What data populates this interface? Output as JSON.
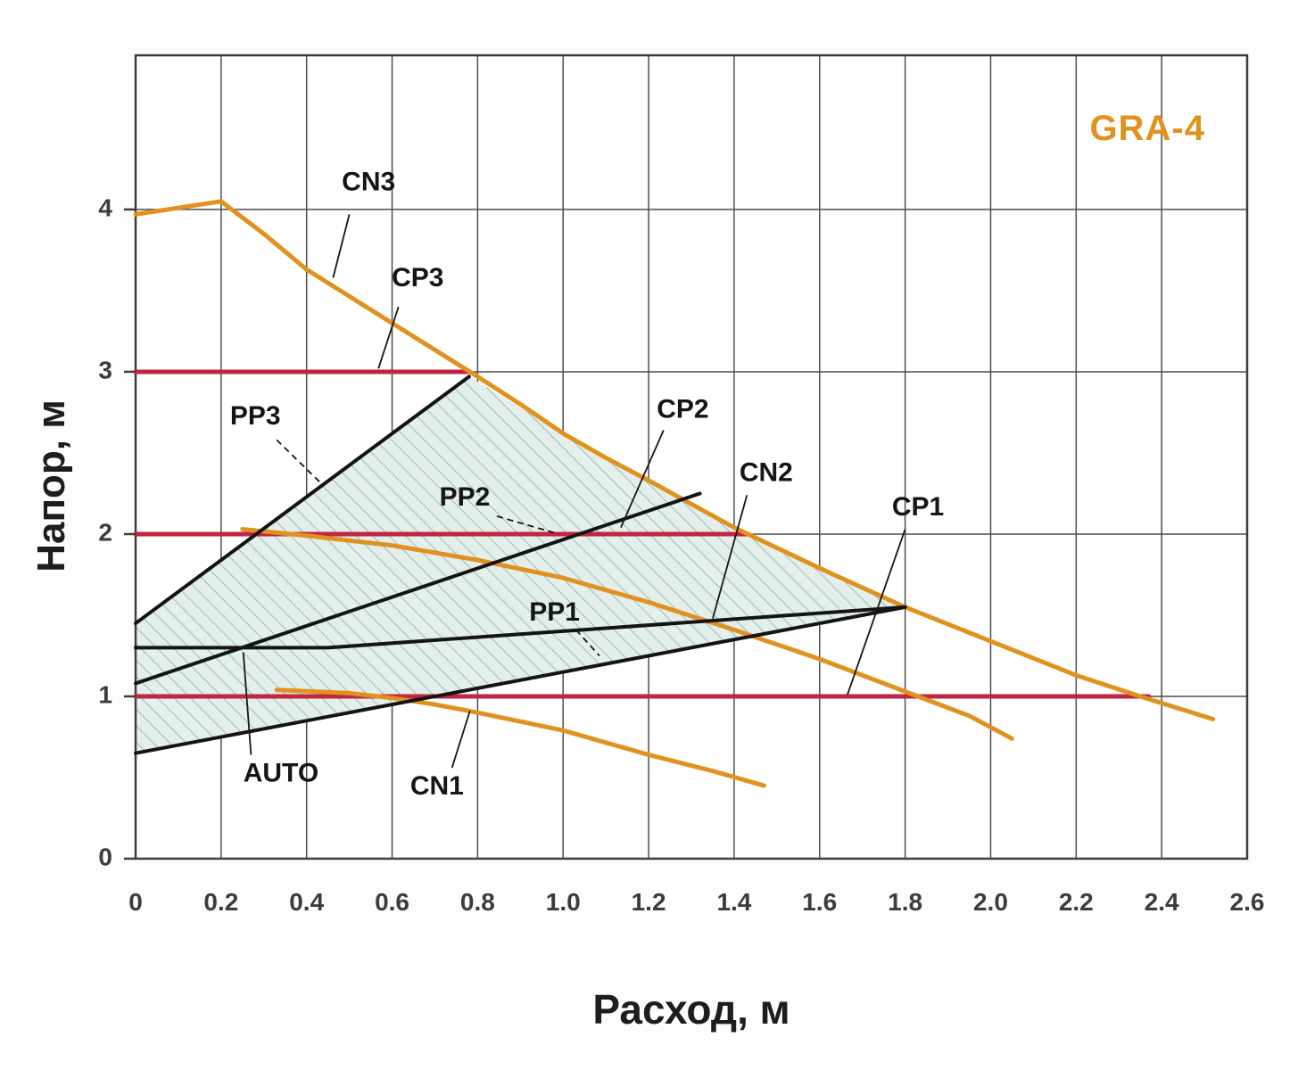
{
  "chart_data": {
    "type": "line",
    "title": "GRA-4",
    "title_color": "#e0921f",
    "xlabel": "Расход, м",
    "ylabel": "Напор, м",
    "xlim": [
      0,
      2.6
    ],
    "ylim": [
      0,
      4.95
    ],
    "x_ticks": [
      0,
      0.2,
      0.4,
      0.6,
      0.8,
      1.0,
      1.2,
      1.4,
      1.6,
      1.8,
      2.0,
      2.2,
      2.4,
      2.6
    ],
    "x_tick_labels": [
      "0",
      "0.2",
      "0.4",
      "0.6",
      "0.8",
      "1.0",
      "1.2",
      "1.4",
      "1.6",
      "1.8",
      "2.0",
      "2.2",
      "2.4",
      "2.6"
    ],
    "y_ticks": [
      0,
      1,
      2,
      3,
      4
    ],
    "y_tick_labels": [
      "0",
      "1",
      "2",
      "3",
      "4"
    ],
    "grid": {
      "y_lines": [
        1,
        2,
        3,
        4
      ],
      "color": "#4d4d4d",
      "border_color": "#3d3d3d"
    },
    "envelope": {
      "comment": "hatched AUTO operating range",
      "fill": "#e4efeb",
      "hatch_color": "#86b1a6",
      "points": [
        [
          0,
          0.65
        ],
        [
          0,
          1.45
        ],
        [
          0.78,
          2.97
        ],
        [
          1.0,
          2.62
        ],
        [
          1.2,
          2.33
        ],
        [
          1.4,
          2.04
        ],
        [
          1.6,
          1.79
        ],
        [
          1.8,
          1.55
        ]
      ]
    },
    "series": [
      {
        "name": "CP3",
        "color": "#c12540",
        "width": 5,
        "points": [
          [
            0,
            3.0
          ],
          [
            0.78,
            3.0
          ]
        ]
      },
      {
        "name": "CP2",
        "color": "#c12540",
        "width": 5,
        "points": [
          [
            0,
            2.0
          ],
          [
            1.43,
            2.0
          ]
        ]
      },
      {
        "name": "CP1",
        "color": "#c12540",
        "width": 5,
        "points": [
          [
            0,
            1.0
          ],
          [
            2.37,
            1.0
          ]
        ]
      },
      {
        "name": "CN3",
        "color": "#e0921f",
        "width": 5,
        "points": [
          [
            0,
            3.97
          ],
          [
            0.2,
            4.05
          ],
          [
            0.3,
            3.85
          ],
          [
            0.4,
            3.63
          ],
          [
            0.6,
            3.3
          ],
          [
            0.8,
            2.97
          ],
          [
            0.9,
            2.8
          ],
          [
            1.0,
            2.62
          ],
          [
            1.1,
            2.47
          ],
          [
            1.2,
            2.33
          ],
          [
            1.4,
            2.04
          ],
          [
            1.6,
            1.79
          ],
          [
            1.8,
            1.55
          ],
          [
            2.0,
            1.34
          ],
          [
            2.2,
            1.13
          ],
          [
            2.35,
            1.0
          ],
          [
            2.52,
            0.86
          ]
        ]
      },
      {
        "name": "CN2",
        "color": "#e0921f",
        "width": 5,
        "points": [
          [
            0.25,
            2.03
          ],
          [
            0.4,
            1.99
          ],
          [
            0.6,
            1.93
          ],
          [
            0.8,
            1.84
          ],
          [
            1.0,
            1.73
          ],
          [
            1.2,
            1.58
          ],
          [
            1.4,
            1.41
          ],
          [
            1.6,
            1.23
          ],
          [
            1.8,
            1.03
          ],
          [
            1.95,
            0.88
          ],
          [
            2.05,
            0.74
          ]
        ]
      },
      {
        "name": "CN1",
        "color": "#e0921f",
        "width": 5,
        "points": [
          [
            0.33,
            1.04
          ],
          [
            0.5,
            1.02
          ],
          [
            0.6,
            0.99
          ],
          [
            0.7,
            0.95
          ],
          [
            0.8,
            0.9
          ],
          [
            1.0,
            0.79
          ],
          [
            1.2,
            0.64
          ],
          [
            1.35,
            0.54
          ],
          [
            1.47,
            0.45
          ]
        ]
      },
      {
        "name": "PP3",
        "color": "#141414",
        "width": 4,
        "points": [
          [
            0,
            1.45
          ],
          [
            0.78,
            2.97
          ]
        ]
      },
      {
        "name": "PP2",
        "color": "#141414",
        "width": 4,
        "points": [
          [
            0,
            1.08
          ],
          [
            1.32,
            2.25
          ]
        ]
      },
      {
        "name": "PP1",
        "color": "#141414",
        "width": 4,
        "points": [
          [
            0,
            0.65
          ],
          [
            1.8,
            1.55
          ]
        ]
      },
      {
        "name": "AUTO",
        "color": "#141414",
        "width": 4,
        "points": [
          [
            0,
            1.3
          ],
          [
            0.45,
            1.3
          ],
          [
            1.8,
            1.55
          ]
        ]
      }
    ],
    "annotations": [
      {
        "text": "CN3",
        "x": 0.545,
        "y": 4.16,
        "lx": 0.5,
        "ly": 3.97,
        "tx": 0.462,
        "ty": 3.58,
        "dashed": false
      },
      {
        "text": "CP3",
        "x": 0.66,
        "y": 3.57,
        "lx": 0.615,
        "ly": 3.4,
        "tx": 0.568,
        "ty": 3.02,
        "dashed": false
      },
      {
        "text": "PP3",
        "x": 0.28,
        "y": 2.72,
        "lx": 0.33,
        "ly": 2.58,
        "tx": 0.435,
        "ty": 2.31,
        "dashed": true
      },
      {
        "text": "PP2",
        "x": 0.77,
        "y": 2.22,
        "lx": 0.845,
        "ly": 2.11,
        "tx": 0.99,
        "ty": 2.0,
        "dashed": true
      },
      {
        "text": "CP2",
        "x": 1.28,
        "y": 2.76,
        "lx": 1.235,
        "ly": 2.64,
        "tx": 1.135,
        "ty": 2.04,
        "dashed": false
      },
      {
        "text": "CN2",
        "x": 1.475,
        "y": 2.37,
        "lx": 1.43,
        "ly": 2.24,
        "tx": 1.35,
        "ty": 1.48,
        "dashed": false
      },
      {
        "text": "CP1",
        "x": 1.83,
        "y": 2.16,
        "lx": 1.8,
        "ly": 2.03,
        "tx": 1.665,
        "ty": 1.01,
        "dashed": false
      },
      {
        "text": "PP1",
        "x": 0.98,
        "y": 1.51,
        "lx": 1.03,
        "ly": 1.41,
        "tx": 1.085,
        "ty": 1.25,
        "dashed": true
      },
      {
        "text": "AUTO",
        "x": 0.34,
        "y": 0.52,
        "lx": 0.27,
        "ly": 0.64,
        "tx": 0.252,
        "ty": 1.27,
        "dashed": false
      },
      {
        "text": "CN1",
        "x": 0.705,
        "y": 0.44,
        "lx": 0.74,
        "ly": 0.56,
        "tx": 0.782,
        "ty": 0.91,
        "dashed": false
      }
    ]
  }
}
